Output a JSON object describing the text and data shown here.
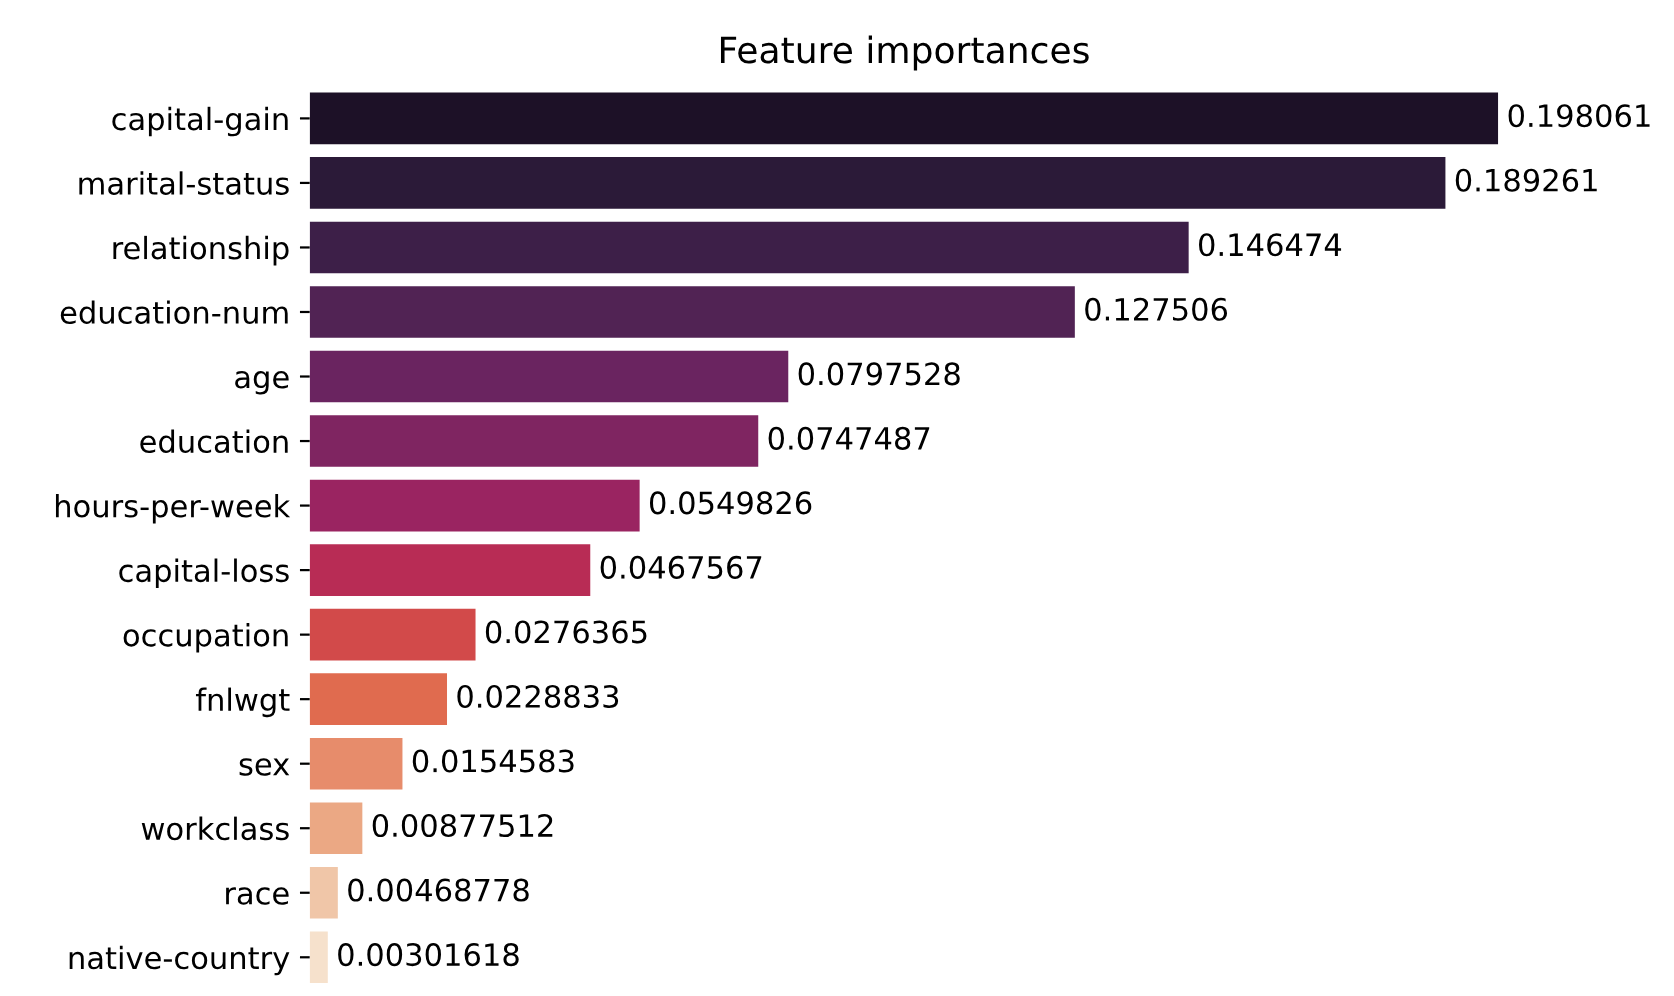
{
  "chart_data": {
    "type": "bar",
    "orientation": "horizontal",
    "title": "Feature importances",
    "categories": [
      "capital-gain",
      "marital-status",
      "relationship",
      "education-num",
      "age",
      "education",
      "hours-per-week",
      "capital-loss",
      "occupation",
      "fnlwgt",
      "sex",
      "workclass",
      "race",
      "native-country"
    ],
    "values": [
      0.198061,
      0.189261,
      0.146474,
      0.127506,
      0.0797528,
      0.0747487,
      0.0549826,
      0.0467567,
      0.0276365,
      0.0228833,
      0.0154583,
      0.00877512,
      0.00468778,
      0.00301618
    ],
    "colors": [
      "#1d1127",
      "#2b1a38",
      "#3d1f48",
      "#512354",
      "#6a2460",
      "#7f2561",
      "#9a2461",
      "#b82c55",
      "#d24a4a",
      "#e06b4f",
      "#e78c6b",
      "#eba884",
      "#f0c6a8",
      "#f6e1cc"
    ],
    "data_labels": true,
    "tick_labels": "y",
    "grid": false,
    "legend": false
  }
}
